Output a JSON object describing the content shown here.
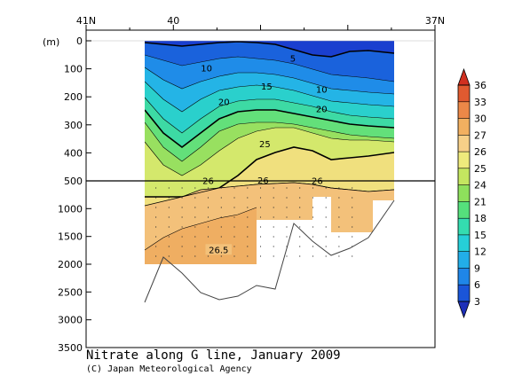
{
  "chart_data": {
    "type": "heatmap",
    "title": "Nitrate along G line, January 2009",
    "credit": "(C) Japan Meteorological Agency",
    "depth_unit_label": "(m)",
    "top_axis_labels": [
      {
        "label": "41N",
        "lat": 41
      },
      {
        "label": "40",
        "lat": 40
      },
      {
        "label": "37N",
        "lat": 37
      }
    ],
    "depth_ticks": [
      0,
      100,
      200,
      300,
      400,
      500,
      1000,
      1500,
      2000,
      2500,
      3000,
      3500
    ],
    "depth_axis_note": "0-500 m upper panel linear, 500-3500 m lower panel compressed",
    "station_lat": [
      40.2,
      40.05,
      39.9,
      39.75,
      39.6,
      39.45,
      39.3,
      39.15,
      39.0,
      38.85,
      38.7,
      38.55,
      38.4,
      38.25,
      38.1,
      37.95
    ],
    "colorbar": {
      "levels": [
        3,
        6,
        9,
        12,
        15,
        18,
        21,
        24,
        25,
        26,
        27,
        30,
        33,
        36
      ],
      "colors": [
        "#1d2fb8",
        "#1a55d8",
        "#1f86e8",
        "#22aee8",
        "#26cfd8",
        "#34dcb0",
        "#55e07c",
        "#8ee05c",
        "#c4e660",
        "#eeea7c",
        "#f7d088",
        "#f2b060",
        "#ec8848",
        "#e05a30",
        "#d03020"
      ],
      "extend": "both"
    },
    "contour_labels": [
      {
        "value": "5",
        "lat": 38.63,
        "depth": 65
      },
      {
        "value": "10",
        "lat": 39.62,
        "depth": 100
      },
      {
        "value": "10",
        "lat": 38.3,
        "depth": 175
      },
      {
        "value": "15",
        "lat": 38.93,
        "depth": 165
      },
      {
        "value": "20",
        "lat": 39.42,
        "depth": 220
      },
      {
        "value": "20",
        "lat": 38.3,
        "depth": 245
      },
      {
        "value": "25",
        "lat": 38.95,
        "depth": 370
      },
      {
        "value": "26",
        "lat": 39.6,
        "depth": 510
      },
      {
        "value": "26",
        "lat": 38.97,
        "depth": 500
      },
      {
        "value": "26",
        "lat": 38.35,
        "depth": 510
      },
      {
        "value": "26.5",
        "lat": 39.48,
        "depth": 1750
      }
    ]
  }
}
